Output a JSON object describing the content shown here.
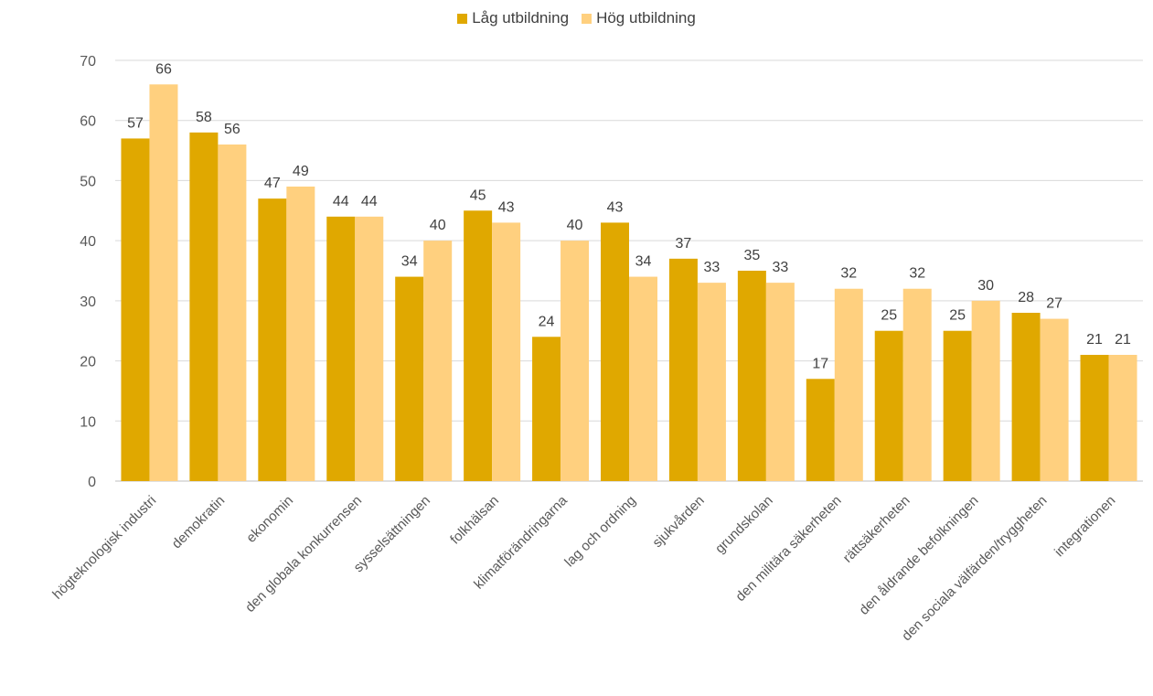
{
  "chart_data": {
    "type": "bar",
    "title": "",
    "xlabel": "",
    "ylabel": "",
    "ylim": [
      0,
      70
    ],
    "yticks": [
      0,
      10,
      20,
      30,
      40,
      50,
      60,
      70
    ],
    "grid": true,
    "legend_position": "top-center",
    "categories": [
      "högteknologisk industri",
      "demokratin",
      "ekonomin",
      "den globala konkurrensen",
      "sysselsättningen",
      "folkhälsan",
      "klimatförändringarna",
      "lag och ordning",
      "sjukvården",
      "grundskolan",
      "den militära säkerheten",
      "rättsäkerheten",
      "den åldrande befolkningen",
      "den sociala välfärden/tryggheten",
      "integrationen"
    ],
    "series": [
      {
        "name": "Låg utbildning",
        "color": "#E0A800",
        "values": [
          57,
          58,
          47,
          44,
          34,
          45,
          24,
          43,
          37,
          35,
          17,
          25,
          25,
          28,
          21
        ]
      },
      {
        "name": "Hög utbildning",
        "color": "#FFD07F",
        "values": [
          66,
          56,
          49,
          44,
          40,
          43,
          40,
          34,
          33,
          33,
          32,
          32,
          30,
          27,
          21
        ]
      }
    ]
  }
}
